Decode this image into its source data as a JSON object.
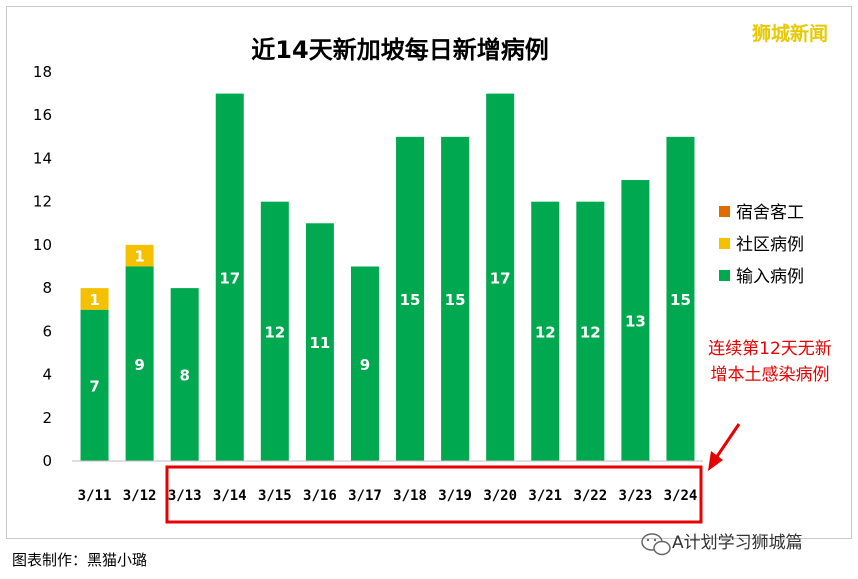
{
  "colors": {
    "import": "#00a84f",
    "community": "#f5c000",
    "dormitory": "#e06c00",
    "annotation": "#e60000",
    "brand": "#e8c800"
  },
  "brand_text": "狮城新闻",
  "wechat_text": "A计划学习狮城篇",
  "caption": "图表制作：黑猫小璐",
  "chart_data": {
    "type": "bar",
    "stacked": true,
    "title": "近14天新加坡每日新增病例",
    "categories": [
      "3/11",
      "3/12",
      "3/13",
      "3/14",
      "3/15",
      "3/16",
      "3/17",
      "3/18",
      "3/19",
      "3/20",
      "3/21",
      "3/22",
      "3/23",
      "3/24"
    ],
    "series": [
      {
        "name": "宿舍客工",
        "color": "#e06c00",
        "values": [
          0,
          0,
          0,
          0,
          0,
          0,
          0,
          0,
          0,
          0,
          0,
          0,
          0,
          0
        ]
      },
      {
        "name": "社区病例",
        "color": "#f5c000",
        "values": [
          1,
          1,
          0,
          0,
          0,
          0,
          0,
          0,
          0,
          0,
          0,
          0,
          0,
          0
        ]
      },
      {
        "name": "输入病例",
        "color": "#00a84f",
        "values": [
          7,
          9,
          8,
          17,
          12,
          11,
          9,
          15,
          15,
          17,
          12,
          12,
          13,
          15
        ]
      }
    ],
    "yticks": [
      0,
      2,
      4,
      6,
      8,
      10,
      12,
      14,
      16,
      18
    ],
    "ylim": [
      0,
      18
    ],
    "legend_position": "right",
    "annotation": [
      "连续第12天无新",
      "增本土感染病例"
    ]
  }
}
